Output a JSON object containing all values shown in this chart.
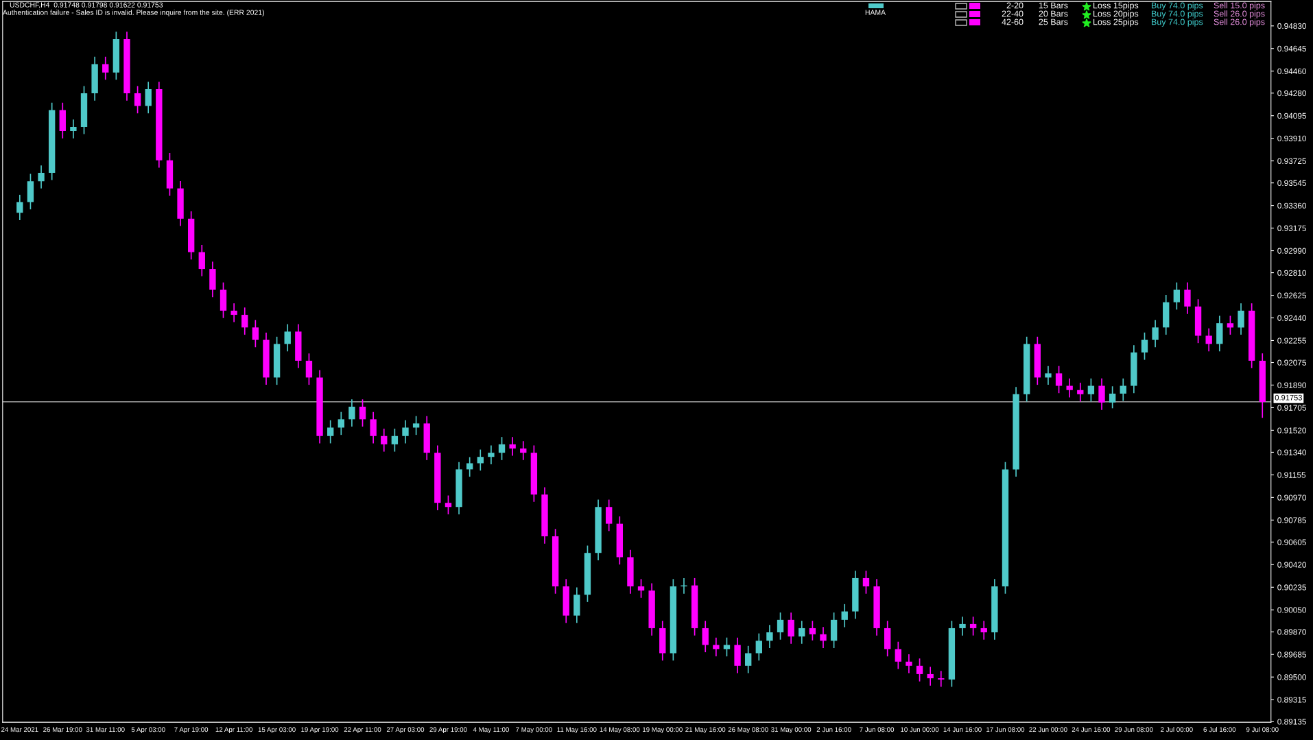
{
  "chart_data": {
    "type": "candlestick",
    "title": "USDCHF,H4  0.91748 0.91798 0.91622 0.91753",
    "subtitle": "Authentication failure - Sales ID is invalid. Please inquire from the site. (ERR 2021)",
    "annotations": [
      "HAMA",
      "2-20",
      "15 Bars",
      "Loss 15pips",
      "Buy 74.0 pips",
      "Sell 15.0 pips",
      "22-40",
      "20 Bars",
      "Loss 20pips",
      "Buy 74.0 pips",
      "Sell 26.0 pips",
      "42-60",
      "25 Bars",
      "Loss 25pips",
      "Buy 74.0 pips",
      "Sell 26.0 pips"
    ],
    "categories": [
      "24 Mar 2021",
      null,
      null,
      null,
      "26 Mar 19:00",
      null,
      null,
      null,
      "31 Mar 11:00",
      null,
      null,
      null,
      "5 Apr 03:00",
      null,
      null,
      null,
      "7 Apr 19:00",
      null,
      null,
      null,
      "12 Apr 11:00",
      null,
      null,
      null,
      "15 Apr 03:00",
      null,
      null,
      null,
      "19 Apr 19:00",
      null,
      null,
      null,
      "22 Apr 11:00",
      null,
      null,
      null,
      "27 Apr 03:00",
      null,
      null,
      null,
      "29 Apr 19:00",
      null,
      null,
      null,
      "4 May 11:00",
      null,
      null,
      null,
      "7 May 00:00",
      null,
      null,
      null,
      "11 May 16:00",
      null,
      null,
      null,
      "14 May 08:00",
      null,
      null,
      null,
      "19 May 00:00",
      null,
      null,
      null,
      "21 May 16:00",
      null,
      null,
      null,
      "26 May 08:00",
      null,
      null,
      null,
      "31 May 00:00",
      null,
      null,
      null,
      "2 Jun 16:00",
      null,
      null,
      null,
      "7 Jun 08:00",
      null,
      null,
      null,
      "10 Jun 00:00",
      null,
      null,
      null,
      "14 Jun 16:00",
      null,
      null,
      null,
      "17 Jun 08:00",
      null,
      null,
      null,
      "22 Jun 00:00",
      null,
      null,
      null,
      "24 Jun 16:00",
      null,
      null,
      null,
      "29 Jun 08:00",
      null,
      null,
      null,
      "2 Jul 00:00",
      null,
      null,
      null,
      "6 Jul 16:00",
      null,
      null,
      null,
      "9 Jul 08:00"
    ],
    "ohlc": [
      [
        0.933,
        0.93448,
        0.9324,
        0.93388
      ],
      [
        0.93388,
        0.93619,
        0.93328,
        0.93559
      ],
      [
        0.93559,
        0.93688,
        0.93499,
        0.93628
      ],
      [
        0.93628,
        0.94201,
        0.93568,
        0.94141
      ],
      [
        0.94141,
        0.94201,
        0.9391,
        0.9397
      ],
      [
        0.9397,
        0.94064,
        0.9391,
        0.94004
      ],
      [
        0.94004,
        0.94338,
        0.93944,
        0.94278
      ],
      [
        0.94278,
        0.94577,
        0.94218,
        0.94517
      ],
      [
        0.94517,
        0.94577,
        0.94389,
        0.94449
      ],
      [
        0.94449,
        0.94782,
        0.94389,
        0.94722
      ],
      [
        0.94722,
        0.94782,
        0.94218,
        0.94278
      ],
      [
        0.94278,
        0.94338,
        0.94115,
        0.94175
      ],
      [
        0.94175,
        0.94372,
        0.94115,
        0.94312
      ],
      [
        0.94312,
        0.94372,
        0.9367,
        0.9373
      ],
      [
        0.9373,
        0.9379,
        0.9344,
        0.935
      ],
      [
        0.935,
        0.9356,
        0.93192,
        0.93252
      ],
      [
        0.93252,
        0.93312,
        0.92918,
        0.92978
      ],
      [
        0.92978,
        0.93038,
        0.92781,
        0.92841
      ],
      [
        0.92841,
        0.92901,
        0.9261,
        0.9267
      ],
      [
        0.9267,
        0.9273,
        0.92439,
        0.92499
      ],
      [
        0.92499,
        0.92559,
        0.92405,
        0.92465
      ],
      [
        0.92465,
        0.92525,
        0.92302,
        0.92362
      ],
      [
        0.92362,
        0.92422,
        0.922,
        0.9226
      ],
      [
        0.9226,
        0.9232,
        0.91892,
        0.91952
      ],
      [
        0.91952,
        0.92286,
        0.91892,
        0.92226
      ],
      [
        0.92226,
        0.92388,
        0.92166,
        0.92328
      ],
      [
        0.92328,
        0.92388,
        0.92029,
        0.92089
      ],
      [
        0.92089,
        0.92149,
        0.91892,
        0.91952
      ],
      [
        0.91952,
        0.92012,
        0.91413,
        0.91473
      ],
      [
        0.91473,
        0.91602,
        0.91413,
        0.91542
      ],
      [
        0.91542,
        0.9167,
        0.91482,
        0.9161
      ],
      [
        0.9161,
        0.91773,
        0.9155,
        0.91713
      ],
      [
        0.91713,
        0.91773,
        0.9155,
        0.9161
      ],
      [
        0.9161,
        0.9167,
        0.91413,
        0.91473
      ],
      [
        0.91473,
        0.91533,
        0.91345,
        0.91405
      ],
      [
        0.91405,
        0.91533,
        0.91345,
        0.91473
      ],
      [
        0.91473,
        0.91602,
        0.91413,
        0.91542
      ],
      [
        0.91542,
        0.91636,
        0.91482,
        0.91576
      ],
      [
        0.91576,
        0.91636,
        0.91276,
        0.91336
      ],
      [
        0.91336,
        0.91396,
        0.90866,
        0.90926
      ],
      [
        0.90926,
        0.90986,
        0.90832,
        0.90892
      ],
      [
        0.90892,
        0.9126,
        0.90832,
        0.912
      ],
      [
        0.912,
        0.913,
        0.9114,
        0.9125
      ],
      [
        0.9125,
        0.91362,
        0.9119,
        0.91302
      ],
      [
        0.91302,
        0.91396,
        0.91242,
        0.91336
      ],
      [
        0.91336,
        0.91465,
        0.91276,
        0.91405
      ],
      [
        0.91405,
        0.91465,
        0.91311,
        0.91371
      ],
      [
        0.91371,
        0.91431,
        0.91276,
        0.91336
      ],
      [
        0.91336,
        0.91396,
        0.90934,
        0.90994
      ],
      [
        0.90994,
        0.91054,
        0.90592,
        0.90652
      ],
      [
        0.90652,
        0.90712,
        0.90182,
        0.90242
      ],
      [
        0.90242,
        0.90302,
        0.89943,
        0.90003
      ],
      [
        0.90003,
        0.90234,
        0.89943,
        0.90174
      ],
      [
        0.90174,
        0.90576,
        0.90114,
        0.90516
      ],
      [
        0.90516,
        0.90952,
        0.90456,
        0.90892
      ],
      [
        0.90892,
        0.90952,
        0.90695,
        0.90755
      ],
      [
        0.90755,
        0.90815,
        0.90421,
        0.90481
      ],
      [
        0.90481,
        0.90541,
        0.90182,
        0.90242
      ],
      [
        0.90242,
        0.90302,
        0.90148,
        0.90208
      ],
      [
        0.90208,
        0.90268,
        0.8984,
        0.899
      ],
      [
        0.899,
        0.8996,
        0.89635,
        0.89695
      ],
      [
        0.89695,
        0.90302,
        0.89635,
        0.90242
      ],
      [
        0.90242,
        0.9031,
        0.90182,
        0.9025
      ],
      [
        0.9025,
        0.9031,
        0.8984,
        0.899
      ],
      [
        0.899,
        0.8996,
        0.89703,
        0.89763
      ],
      [
        0.89763,
        0.89823,
        0.89669,
        0.89729
      ],
      [
        0.89729,
        0.89823,
        0.89669,
        0.89763
      ],
      [
        0.89763,
        0.89823,
        0.89532,
        0.89592
      ],
      [
        0.89592,
        0.89755,
        0.89532,
        0.89695
      ],
      [
        0.89695,
        0.89857,
        0.89635,
        0.89797
      ],
      [
        0.89797,
        0.89926,
        0.89737,
        0.89866
      ],
      [
        0.89866,
        0.90028,
        0.89806,
        0.89968
      ],
      [
        0.89968,
        0.90028,
        0.89772,
        0.89832
      ],
      [
        0.89832,
        0.8996,
        0.89772,
        0.899
      ],
      [
        0.899,
        0.8996,
        0.898,
        0.8985
      ],
      [
        0.8985,
        0.8991,
        0.89737,
        0.89797
      ],
      [
        0.89797,
        0.90028,
        0.89737,
        0.89968
      ],
      [
        0.89968,
        0.90097,
        0.89908,
        0.90037
      ],
      [
        0.90037,
        0.9037,
        0.89977,
        0.9031
      ],
      [
        0.9031,
        0.9037,
        0.90182,
        0.90242
      ],
      [
        0.90242,
        0.90302,
        0.8984,
        0.899
      ],
      [
        0.899,
        0.8996,
        0.89669,
        0.89729
      ],
      [
        0.89729,
        0.89789,
        0.89566,
        0.89626
      ],
      [
        0.89626,
        0.89686,
        0.89532,
        0.89592
      ],
      [
        0.89592,
        0.89652,
        0.89464,
        0.89524
      ],
      [
        0.89524,
        0.89584,
        0.8943,
        0.8949
      ],
      [
        0.8949,
        0.8955,
        0.8942,
        0.8948
      ],
      [
        0.8948,
        0.8996,
        0.8942,
        0.899
      ],
      [
        0.899,
        0.89994,
        0.8984,
        0.89934
      ],
      [
        0.89934,
        0.89994,
        0.8984,
        0.899
      ],
      [
        0.899,
        0.8996,
        0.89806,
        0.89866
      ],
      [
        0.89866,
        0.90302,
        0.89806,
        0.90242
      ],
      [
        0.90242,
        0.9126,
        0.90182,
        0.912
      ],
      [
        0.912,
        0.91875,
        0.9114,
        0.91815
      ],
      [
        0.91815,
        0.92286,
        0.91755,
        0.92226
      ],
      [
        0.92226,
        0.92286,
        0.91892,
        0.91952
      ],
      [
        0.91952,
        0.92046,
        0.91892,
        0.91986
      ],
      [
        0.91986,
        0.92046,
        0.91824,
        0.91884
      ],
      [
        0.91884,
        0.91944,
        0.91789,
        0.91849
      ],
      [
        0.91849,
        0.91909,
        0.91755,
        0.91815
      ],
      [
        0.91815,
        0.91944,
        0.91755,
        0.91884
      ],
      [
        0.91884,
        0.91944,
        0.91687,
        0.91747
      ],
      [
        0.91747,
        0.9188,
        0.917,
        0.9182
      ],
      [
        0.9182,
        0.91944,
        0.9176,
        0.91884
      ],
      [
        0.91884,
        0.92217,
        0.91824,
        0.92157
      ],
      [
        0.92157,
        0.9232,
        0.92097,
        0.9226
      ],
      [
        0.9226,
        0.92422,
        0.922,
        0.92362
      ],
      [
        0.92362,
        0.92628,
        0.92302,
        0.92568
      ],
      [
        0.92568,
        0.9273,
        0.92508,
        0.9267
      ],
      [
        0.9267,
        0.9273,
        0.92473,
        0.92533
      ],
      [
        0.92533,
        0.92593,
        0.92234,
        0.92294
      ],
      [
        0.92294,
        0.92354,
        0.92166,
        0.92226
      ],
      [
        0.92226,
        0.92457,
        0.92166,
        0.92397
      ],
      [
        0.92397,
        0.92457,
        0.92302,
        0.92362
      ],
      [
        0.92362,
        0.92559,
        0.92302,
        0.92499
      ],
      [
        0.92499,
        0.92559,
        0.92029,
        0.92089
      ],
      [
        0.92089,
        0.92149,
        0.91622,
        0.91753
      ]
    ],
    "colors": [
      "#4fc9c9",
      "#4fc9c9",
      "#4fc9c9",
      "#4fc9c9",
      "#ff00ff",
      "#4fc9c9",
      "#4fc9c9",
      "#4fc9c9",
      "#ff00ff",
      "#4fc9c9",
      "#ff00ff",
      "#ff00ff",
      "#4fc9c9",
      "#ff00ff",
      "#ff00ff",
      "#ff00ff",
      "#ff00ff",
      "#ff00ff",
      "#ff00ff",
      "#ff00ff",
      "#ff00ff",
      "#ff00ff",
      "#ff00ff",
      "#ff00ff",
      "#4fc9c9",
      "#4fc9c9",
      "#ff00ff",
      "#ff00ff",
      "#ff00ff",
      "#4fc9c9",
      "#4fc9c9",
      "#4fc9c9",
      "#ff00ff",
      "#ff00ff",
      "#ff00ff",
      "#4fc9c9",
      "#4fc9c9",
      "#4fc9c9",
      "#ff00ff",
      "#ff00ff",
      "#ff00ff",
      "#4fc9c9",
      "#4fc9c9",
      "#4fc9c9",
      "#4fc9c9",
      "#4fc9c9",
      "#ff00ff",
      "#ff00ff",
      "#ff00ff",
      "#ff00ff",
      "#ff00ff",
      "#ff00ff",
      "#4fc9c9",
      "#4fc9c9",
      "#4fc9c9",
      "#ff00ff",
      "#ff00ff",
      "#ff00ff",
      "#ff00ff",
      "#ff00ff",
      "#ff00ff",
      "#4fc9c9",
      "#4fc9c9",
      "#ff00ff",
      "#ff00ff",
      "#ff00ff",
      "#4fc9c9",
      "#ff00ff",
      "#4fc9c9",
      "#4fc9c9",
      "#4fc9c9",
      "#4fc9c9",
      "#ff00ff",
      "#4fc9c9",
      "#ff00ff",
      "#ff00ff",
      "#4fc9c9",
      "#4fc9c9",
      "#4fc9c9",
      "#ff00ff",
      "#ff00ff",
      "#ff00ff",
      "#ff00ff",
      "#ff00ff",
      "#ff00ff",
      "#ff00ff",
      "#ff00ff",
      "#4fc9c9",
      "#4fc9c9",
      "#ff00ff",
      "#ff00ff",
      "#4fc9c9",
      "#4fc9c9",
      "#4fc9c9",
      "#4fc9c9",
      "#ff00ff",
      "#4fc9c9",
      "#ff00ff",
      "#ff00ff",
      "#ff00ff",
      "#4fc9c9",
      "#ff00ff",
      "#4fc9c9",
      "#4fc9c9",
      "#4fc9c9",
      "#4fc9c9",
      "#4fc9c9",
      "#4fc9c9",
      "#4fc9c9",
      "#ff00ff",
      "#ff00ff",
      "#ff00ff",
      "#4fc9c9",
      "#ff00ff",
      "#4fc9c9",
      "#ff00ff",
      "#ff00ff"
    ],
    "ylim": [
      0.8913,
      0.9503
    ],
    "yticks": [
      {
        "value": 0.9483,
        "label": "0.94830"
      },
      {
        "value": 0.94645,
        "label": "0.94645"
      },
      {
        "value": 0.9446,
        "label": "0.94460"
      },
      {
        "value": 0.9428,
        "label": "0.94280"
      },
      {
        "value": 0.94095,
        "label": "0.94095"
      },
      {
        "value": 0.9391,
        "label": "0.93910"
      },
      {
        "value": 0.93725,
        "label": "0.93725"
      },
      {
        "value": 0.93545,
        "label": "0.93545"
      },
      {
        "value": 0.9336,
        "label": "0.93360"
      },
      {
        "value": 0.93175,
        "label": "0.93175"
      },
      {
        "value": 0.9299,
        "label": "0.92990"
      },
      {
        "value": 0.9281,
        "label": "0.92810"
      },
      {
        "value": 0.92625,
        "label": "0.92625"
      },
      {
        "value": 0.9244,
        "label": "0.92440"
      },
      {
        "value": 0.92255,
        "label": "0.92255"
      },
      {
        "value": 0.92075,
        "label": "0.92075"
      },
      {
        "value": 0.9189,
        "label": "0.91890"
      },
      {
        "value": 0.91705,
        "label": "0.91705"
      },
      {
        "value": 0.9152,
        "label": "0.91520"
      },
      {
        "value": 0.9134,
        "label": "0.91340"
      },
      {
        "value": 0.91155,
        "label": "0.91155"
      },
      {
        "value": 0.9097,
        "label": "0.90970"
      },
      {
        "value": 0.90785,
        "label": "0.90785"
      },
      {
        "value": 0.90605,
        "label": "0.90605"
      },
      {
        "value": 0.9042,
        "label": "0.90420"
      },
      {
        "value": 0.90235,
        "label": "0.90235"
      },
      {
        "value": 0.9005,
        "label": "0.90050"
      },
      {
        "value": 0.8987,
        "label": "0.89870"
      },
      {
        "value": 0.89685,
        "label": "0.89685"
      },
      {
        "value": 0.895,
        "label": "0.89500"
      },
      {
        "value": 0.89315,
        "label": "0.89315"
      },
      {
        "value": 0.89135,
        "label": "0.89135"
      }
    ],
    "ref_lines": [
      {
        "axis": "y",
        "value": 0.91753,
        "label": "0.91753",
        "color": "#c0c0c0"
      }
    ],
    "grid": false
  }
}
